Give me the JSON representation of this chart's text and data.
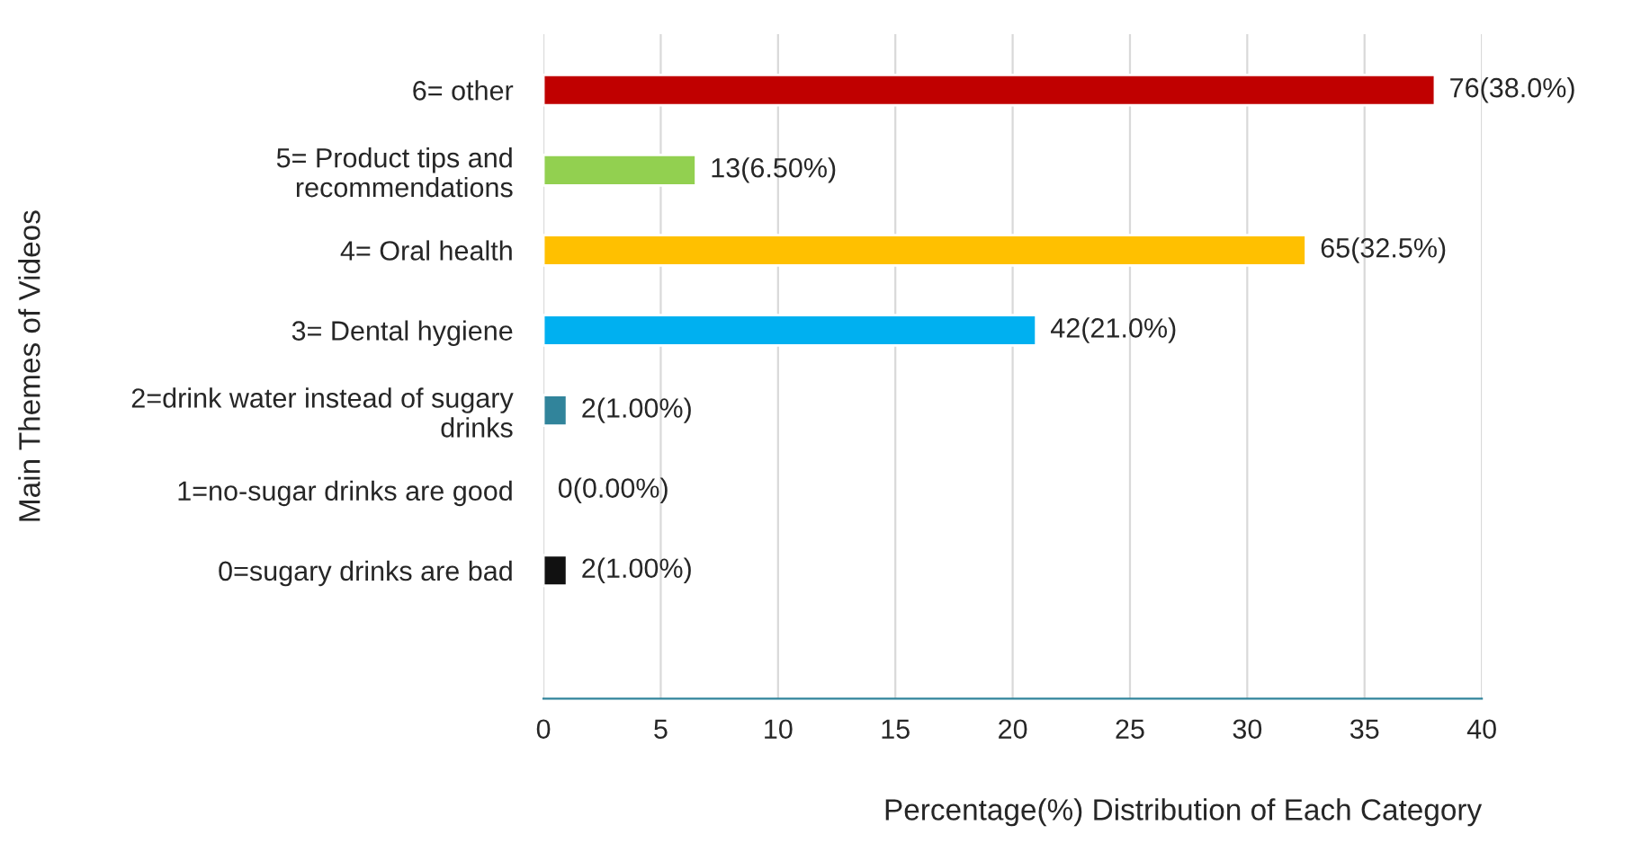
{
  "chart_data": {
    "type": "bar",
    "orientation": "horizontal",
    "ylabel": "Main Themes of Videos",
    "xlabel": "Percentage(%) Distribution of Each Category",
    "categories": [
      "6= other",
      "5= Product tips and\nrecommendations",
      "4= Oral health",
      "3= Dental hygiene",
      "2=drink water instead of sugary\ndrinks",
      "1=no-sugar drinks are good",
      "0=sugary drinks are bad"
    ],
    "values": [
      38.0,
      6.5,
      32.5,
      21.0,
      1.0,
      0.0,
      1.0
    ],
    "colors": [
      "#c00000",
      "#92d050",
      "#ffc000",
      "#00b0f0",
      "#31849b",
      null,
      "#111111"
    ],
    "value_labels": [
      "76(38.0%)",
      "13(6.50%)",
      "65(32.5%)",
      "42(21.0%)",
      "2(1.00%)",
      "0(0.00%)",
      "2(1.00%)"
    ],
    "xlim": [
      0,
      40
    ],
    "xticks": [
      0,
      5,
      10,
      15,
      20,
      25,
      30,
      35,
      40
    ],
    "grid": "x",
    "legend": false
  }
}
